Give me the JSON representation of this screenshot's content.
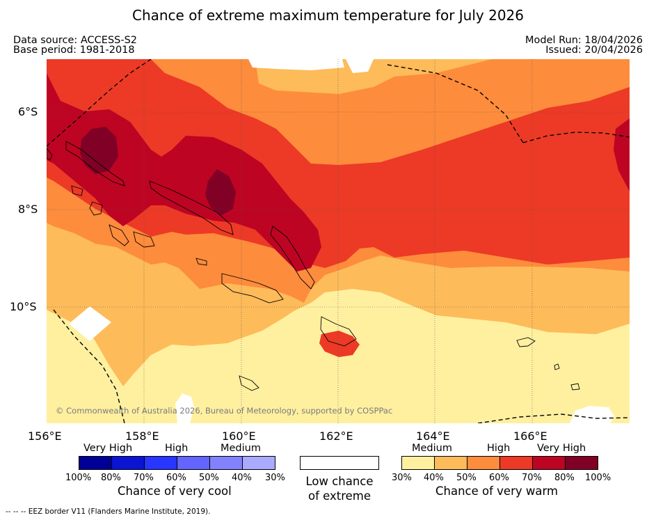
{
  "title": "Chance of extreme maximum temperature for July 2026",
  "header": {
    "data_source": "Data source: ACCESS-S2",
    "base_period": "Base period: 1981-2018",
    "model_run": "Model Run: 18/04/2026",
    "issued": "Issued: 20/04/2026"
  },
  "map": {
    "lat_labels": [
      "6°S",
      "8°S",
      "10°S"
    ],
    "lon_labels": [
      "156°E",
      "158°E",
      "160°E",
      "162°E",
      "164°E",
      "166°E"
    ],
    "copyright": "© Commonwealth of Australia 2026, Bureau of Meteorology, supported by COSPPac",
    "colors": {
      "c30": "#fff0a0",
      "c40": "#fdbb5a",
      "c50": "#fd8c3c",
      "c60": "#ec3a26",
      "c70": "#be0423",
      "c80": "#800026",
      "low": "#ffffff"
    }
  },
  "legend": {
    "cool": {
      "headers": [
        "Very High",
        "High",
        "Medium"
      ],
      "ticks": [
        "100%",
        "80%",
        "70%",
        "60%",
        "50%",
        "40%",
        "30%"
      ],
      "colors": [
        "#000096",
        "#0a14d2",
        "#2836ff",
        "#6464ff",
        "#8282ff",
        "#aaaaff"
      ],
      "title": "Chance of very cool"
    },
    "low": {
      "title_line1": "Low chance",
      "title_line2": "of extreme",
      "color": "#ffffff"
    },
    "warm": {
      "headers": [
        "Medium",
        "High",
        "Very High"
      ],
      "ticks": [
        "30%",
        "40%",
        "50%",
        "60%",
        "70%",
        "80%",
        "100%"
      ],
      "colors": [
        "#fff0a0",
        "#fdbb5a",
        "#fd8c3c",
        "#ec3a26",
        "#be0423",
        "#800026"
      ],
      "title": "Chance of very warm"
    }
  },
  "footnote": "-- -- -- EEZ border V11 (Flanders Marine Institute, 2019)."
}
